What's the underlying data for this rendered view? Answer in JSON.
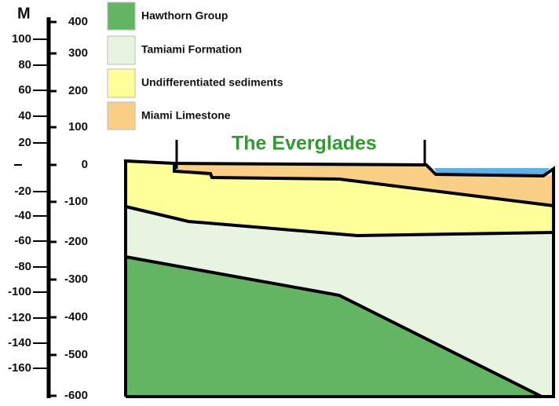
{
  "scale": {
    "unit": "M",
    "meters": [
      "100",
      "80",
      "60",
      "40",
      "20",
      "-20",
      "-40",
      "-60",
      "-80",
      "-100",
      "-120",
      "-140",
      "-160"
    ],
    "feet": [
      "400",
      "300",
      "200",
      "100",
      "0",
      "-100",
      "-200",
      "-300",
      "-400",
      "-500",
      "-600"
    ]
  },
  "legend": [
    "Hawthorn Group",
    "Tamiami Formation",
    "Undifferentiated sediments",
    "Miami Limestone"
  ],
  "title": "The Everglades"
}
